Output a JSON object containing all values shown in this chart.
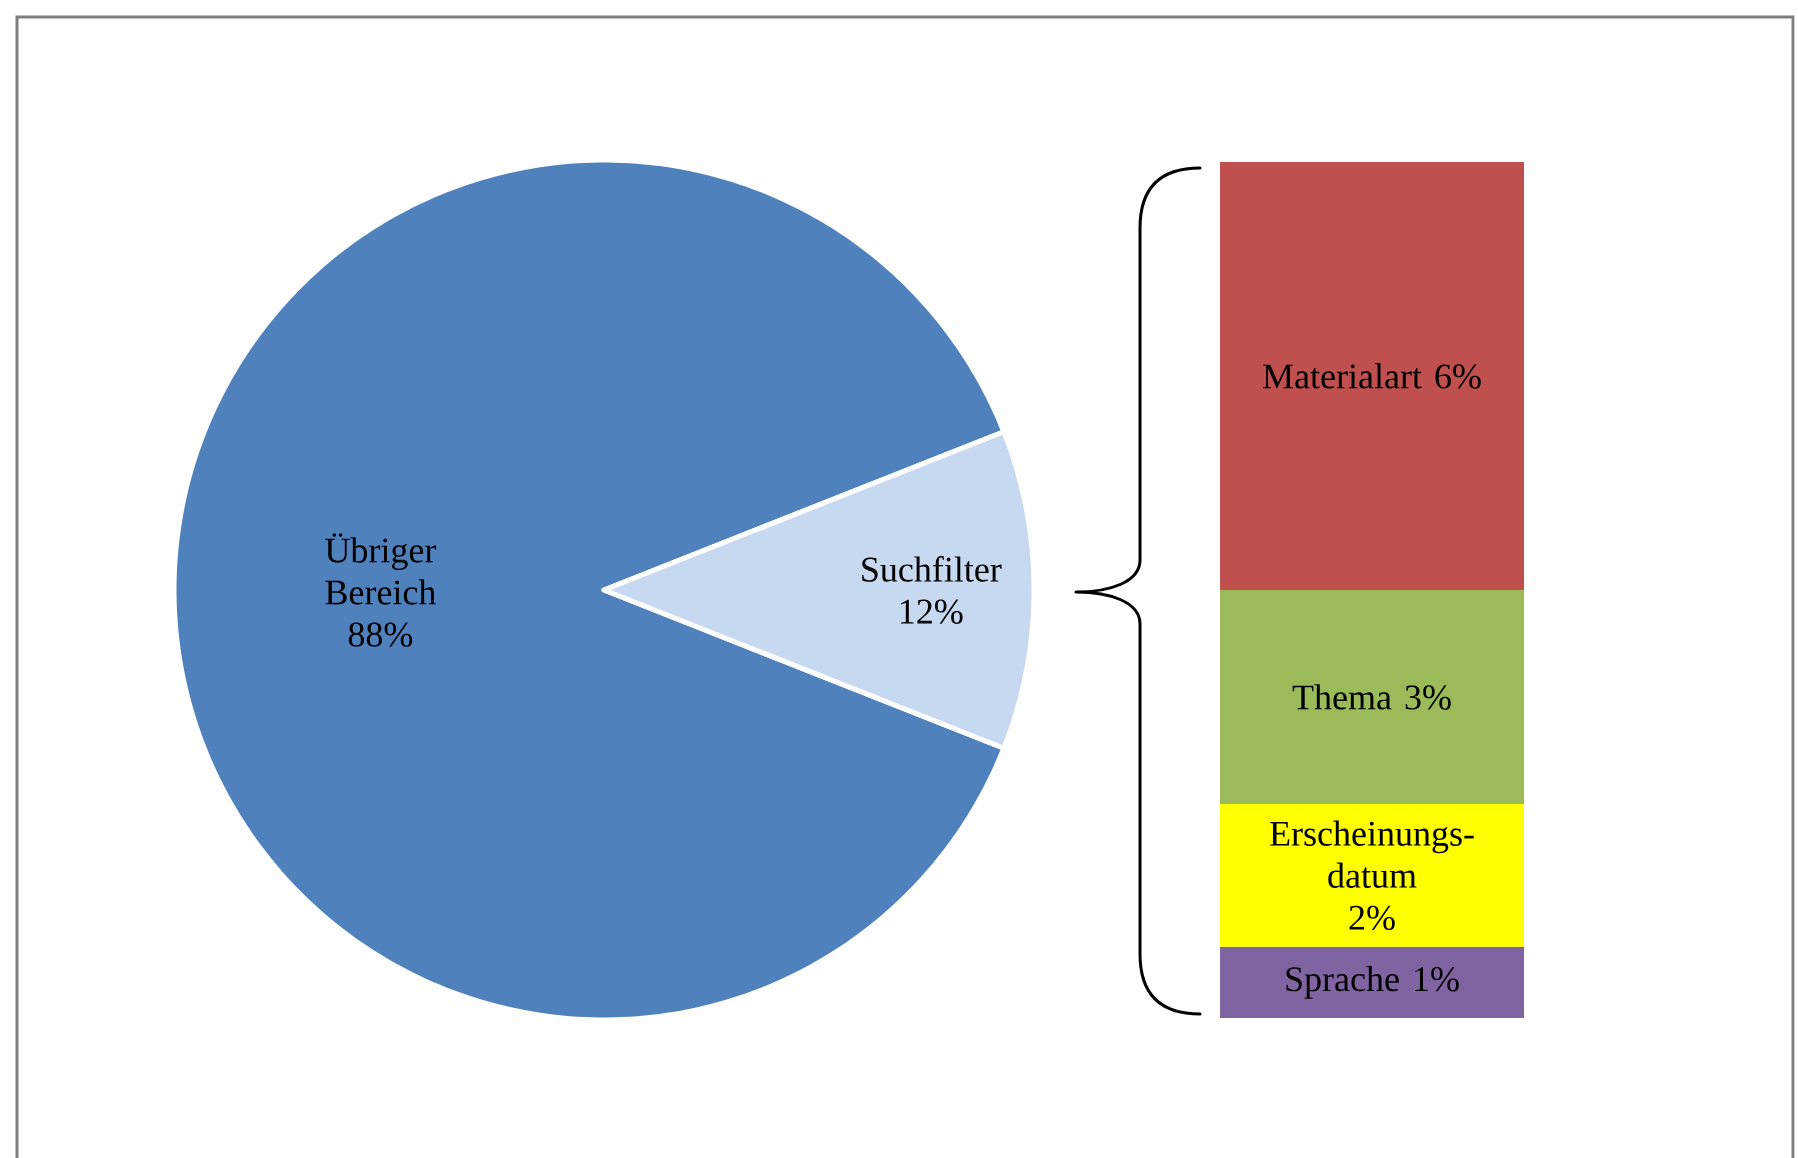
{
  "chart_data": [
    {
      "type": "pie",
      "categories": [
        "Übriger Bereich",
        "Suchfilter"
      ],
      "values": [
        88,
        12
      ],
      "colors": [
        "#4f81bd",
        "#c6d9f1"
      ],
      "value_labels": [
        "88%",
        "12%"
      ]
    },
    {
      "type": "bar",
      "stacked": true,
      "categories": [
        null
      ],
      "series": [
        {
          "name": "Sprache",
          "color": "#8064a2",
          "values": [
            1
          ],
          "value_labels": [
            "1%"
          ]
        },
        {
          "name": "Erscheinungs-datum",
          "color": "#ffff00",
          "values": [
            2
          ],
          "value_labels": [
            "2%"
          ]
        },
        {
          "name": "Thema",
          "color": "#9bbb59",
          "values": [
            3
          ],
          "value_labels": [
            "3%"
          ]
        },
        {
          "name": "Materialart",
          "color": "#c0504d",
          "values": [
            6
          ],
          "value_labels": [
            "6%"
          ]
        }
      ]
    }
  ]
}
